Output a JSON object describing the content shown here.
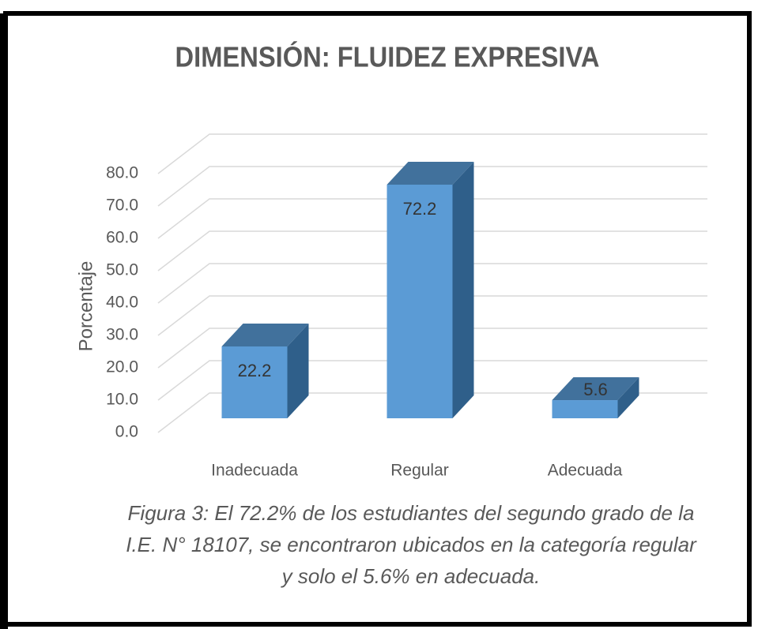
{
  "chart_data": {
    "type": "bar3d",
    "title": "DIMENSIÓN: FLUIDEZ EXPRESIVA",
    "y_label": "Porcentaje",
    "categories": [
      "Inadecuada",
      "Regular",
      "Adecuada"
    ],
    "values": [
      22.2,
      72.2,
      5.6
    ],
    "color": "#5b9bd5",
    "ylim": [
      0,
      80
    ],
    "yticks": [
      {
        "value": 0,
        "label": "0.0"
      },
      {
        "value": 10,
        "label": "10.0"
      },
      {
        "value": 20,
        "label": "20.0"
      },
      {
        "value": 30,
        "label": "30.0"
      },
      {
        "value": 40,
        "label": "40.0"
      },
      {
        "value": 50,
        "label": "50.0"
      },
      {
        "value": 60,
        "label": "60.0"
      },
      {
        "value": 70,
        "label": "70.0"
      },
      {
        "value": 80,
        "label": "80.0"
      }
    ],
    "grid": true,
    "caption": [
      "Figura 3: El 72.2% de los estudiantes del segundo grado de la",
      "I.E. N° 18107, se encontraron ubicados en la categoría regular",
      "y solo el 5.6% en adecuada."
    ]
  }
}
